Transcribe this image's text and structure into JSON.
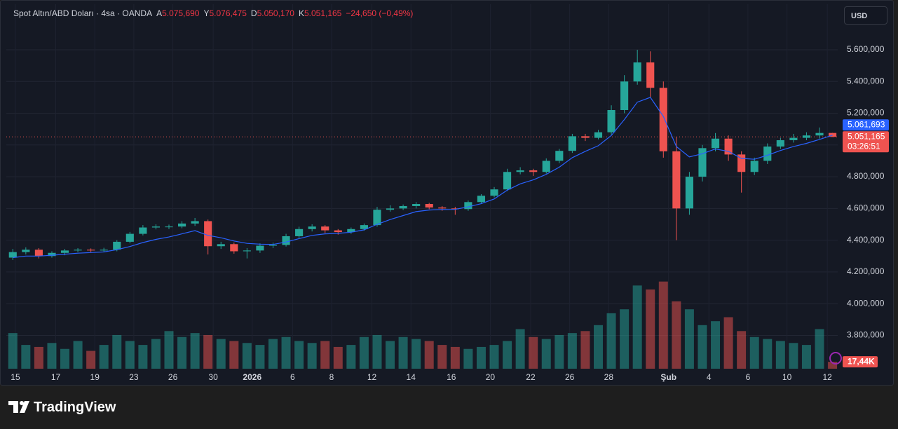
{
  "header": {
    "symbol": "Spot Altın/ABD Doları · 4sa · OANDA",
    "ohlc": [
      {
        "key": "A",
        "label": "5.075,690"
      },
      {
        "key": "Y",
        "label": "5.076,475"
      },
      {
        "key": "D",
        "label": "5.050,170"
      },
      {
        "key": "K",
        "label": "5.051,165"
      }
    ],
    "change": "−24,650 (−0,49%)"
  },
  "currency": "USD",
  "footer": {
    "brand": "TradingView"
  },
  "chart_data": {
    "type": "candlestick",
    "x": [
      0,
      1,
      2,
      3,
      4,
      5,
      6,
      7,
      8,
      9,
      10,
      11,
      12,
      13,
      14,
      15,
      16,
      17,
      18,
      19,
      20,
      21,
      22,
      23,
      24,
      25,
      26,
      27,
      28,
      29,
      30,
      31,
      32,
      33,
      34,
      35,
      36,
      37,
      38,
      39,
      40,
      41,
      42,
      43,
      44,
      45,
      46,
      47,
      48,
      49,
      50,
      51,
      52,
      53,
      54,
      55,
      56,
      57,
      58,
      59,
      60,
      61,
      62,
      63
    ],
    "open": [
      4290,
      4325,
      4340,
      4300,
      4320,
      4335,
      4340,
      4335,
      4340,
      4390,
      4440,
      4480,
      4486,
      4486,
      4505,
      4520,
      4362,
      4375,
      4330,
      4335,
      4365,
      4370,
      4425,
      4470,
      4486,
      4462,
      4451,
      4470,
      4495,
      4592,
      4600,
      4615,
      4628,
      4606,
      4600,
      4596,
      4640,
      4680,
      4720,
      4830,
      4840,
      4830,
      4900,
      4963,
      5055,
      5045,
      5080,
      5220,
      5400,
      5520,
      5360,
      4960,
      4600,
      4800,
      4980,
      5040,
      4940,
      4830,
      4900,
      4990,
      5030,
      5045,
      5060,
      5075.69
    ],
    "high": [
      4345,
      4355,
      4350,
      4330,
      4345,
      4350,
      4348,
      4352,
      4400,
      4452,
      4495,
      4500,
      4498,
      4520,
      4540,
      4530,
      4390,
      4385,
      4350,
      4380,
      4385,
      4440,
      4485,
      4500,
      4495,
      4470,
      4480,
      4505,
      4610,
      4620,
      4625,
      4640,
      4635,
      4615,
      4610,
      4650,
      4690,
      4735,
      4850,
      4860,
      4850,
      4915,
      4975,
      5070,
      5070,
      5095,
      5250,
      5440,
      5600,
      5590,
      5400,
      5050,
      4830,
      5000,
      5075,
      5060,
      4960,
      4920,
      5010,
      5045,
      5070,
      5080,
      5110,
      5076.475
    ],
    "low": [
      4275,
      4310,
      4285,
      4290,
      4305,
      4325,
      4325,
      4325,
      4330,
      4380,
      4430,
      4468,
      4470,
      4475,
      4490,
      4310,
      4345,
      4315,
      4285,
      4320,
      4350,
      4360,
      4415,
      4455,
      4445,
      4435,
      4440,
      4460,
      4485,
      4580,
      4590,
      4600,
      4595,
      4585,
      4560,
      4585,
      4630,
      4670,
      4710,
      4815,
      4805,
      4820,
      4885,
      4950,
      5025,
      5035,
      5065,
      5200,
      5380,
      5300,
      4920,
      4400,
      4560,
      4770,
      4960,
      4900,
      4700,
      4810,
      4880,
      4975,
      5015,
      5030,
      5040,
      5050.17
    ],
    "close": [
      4325,
      4340,
      4300,
      4320,
      4335,
      4340,
      4335,
      4340,
      4390,
      4440,
      4480,
      4486,
      4486,
      4505,
      4520,
      4362,
      4375,
      4330,
      4335,
      4365,
      4370,
      4425,
      4470,
      4486,
      4462,
      4451,
      4470,
      4495,
      4592,
      4600,
      4615,
      4628,
      4606,
      4600,
      4596,
      4640,
      4680,
      4720,
      4830,
      4840,
      4830,
      4900,
      4963,
      5055,
      5045,
      5080,
      5220,
      5400,
      5520,
      5360,
      4960,
      4600,
      4800,
      4980,
      5040,
      4940,
      4830,
      4900,
      4990,
      5030,
      5045,
      5060,
      5075.69,
      5051.165
    ],
    "volume": [
      90,
      60,
      55,
      65,
      50,
      70,
      45,
      60,
      85,
      70,
      60,
      75,
      95,
      80,
      90,
      85,
      75,
      70,
      65,
      60,
      75,
      80,
      70,
      65,
      70,
      55,
      60,
      80,
      85,
      70,
      80,
      75,
      70,
      60,
      55,
      50,
      55,
      60,
      70,
      100,
      80,
      75,
      85,
      90,
      95,
      110,
      140,
      150,
      210,
      200,
      220,
      170,
      150,
      110,
      120,
      130,
      95,
      80,
      75,
      70,
      65,
      60,
      100,
      17.44
    ],
    "ema": [
      4290,
      4300,
      4300,
      4305,
      4312,
      4318,
      4322,
      4326,
      4340,
      4360,
      4385,
      4405,
      4420,
      4440,
      4460,
      4430,
      4415,
      4395,
      4380,
      4375,
      4373,
      4388,
      4410,
      4430,
      4440,
      4443,
      4450,
      4465,
      4500,
      4530,
      4555,
      4580,
      4590,
      4593,
      4594,
      4610,
      4630,
      4660,
      4715,
      4755,
      4780,
      4815,
      4860,
      4920,
      4960,
      4995,
      5060,
      5160,
      5270,
      5300,
      5180,
      4990,
      4925,
      4945,
      4975,
      4960,
      4915,
      4910,
      4935,
      4965,
      4990,
      5010,
      5035,
      5061.693
    ],
    "up_color": "#26a69a",
    "down_color": "#ef5350",
    "ema_color": "#2962ff",
    "xlim": [
      -0.5,
      63.4
    ],
    "xticks": [
      {
        "value": 0.2,
        "label": "15"
      },
      {
        "value": 3.3,
        "label": "17"
      },
      {
        "value": 6.3,
        "label": "19"
      },
      {
        "value": 9.3,
        "label": "23"
      },
      {
        "value": 12.3,
        "label": "26"
      },
      {
        "value": 15.4,
        "label": "30"
      },
      {
        "value": 18.4,
        "label": "2026"
      },
      {
        "value": 21.5,
        "label": "6"
      },
      {
        "value": 24.5,
        "label": "8"
      },
      {
        "value": 27.6,
        "label": "12"
      },
      {
        "value": 30.6,
        "label": "14"
      },
      {
        "value": 33.7,
        "label": "16"
      },
      {
        "value": 36.7,
        "label": "20"
      },
      {
        "value": 39.8,
        "label": "22"
      },
      {
        "value": 42.8,
        "label": "26"
      },
      {
        "value": 45.8,
        "label": "28"
      },
      {
        "value": 50.4,
        "label": "Şub"
      },
      {
        "value": 53.5,
        "label": "4"
      },
      {
        "value": 56.5,
        "label": "6"
      },
      {
        "value": 59.5,
        "label": "10"
      },
      {
        "value": 62.6,
        "label": "12"
      }
    ],
    "ylim": [
      3590,
      5887
    ],
    "yticks": [
      {
        "value": 3800,
        "label": "3.800,000"
      },
      {
        "value": 4000,
        "label": "4.000,000"
      },
      {
        "value": 4200,
        "label": "4.200,000"
      },
      {
        "value": 4400,
        "label": "4.400,000"
      },
      {
        "value": 4600,
        "label": "4.600,000"
      },
      {
        "value": 4800,
        "label": "4.800,000"
      },
      {
        "value": 5000,
        "label": "5.000,000"
      },
      {
        "value": 5200,
        "label": "5.200,000"
      },
      {
        "value": 5400,
        "label": "5.400,000"
      },
      {
        "value": 5600,
        "label": "5.600,000"
      }
    ],
    "volume_lim": [
      0,
      230
    ],
    "grid": true,
    "last_price": {
      "value": 5051.165,
      "label": "5.051,165"
    },
    "ema_last": {
      "value": 5061.693,
      "label": "5.061,693"
    },
    "countdown": "03:26:51",
    "volume_last_label": "17,44K"
  }
}
